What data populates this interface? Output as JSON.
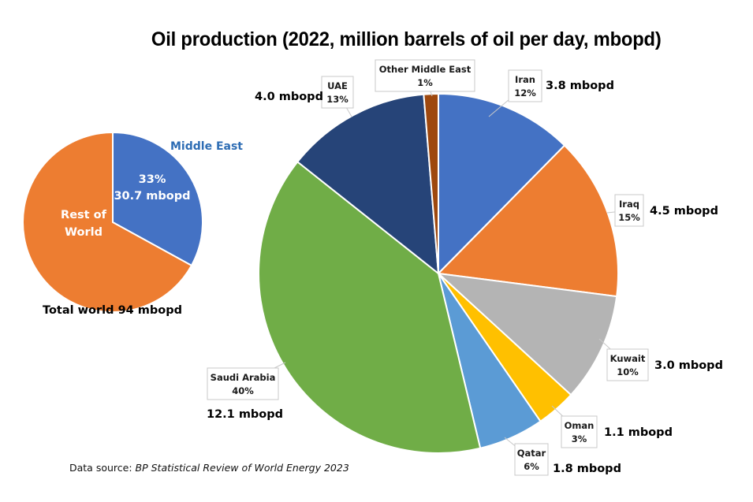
{
  "chart_data": [
    {
      "type": "pie",
      "title": "Oil production (2022, million barrels of oil per day, mbopd)",
      "name": "world-share",
      "slices": [
        {
          "label": "Middle East",
          "percent": 33,
          "value": 30.7,
          "value_label": "30.7 mbopd",
          "pct_label": "33%",
          "color": "#4472C4"
        },
        {
          "label": "Rest of World",
          "percent": 67,
          "value": 63.3,
          "color": "#ED7D31"
        }
      ],
      "slice_labels": {
        "middle_east_heading": "Middle East",
        "middle_east_pct": "33%",
        "middle_east_value": "30.7 mbopd",
        "rest_line1": "Rest of",
        "rest_line2": "World"
      },
      "caption": "Total world 94 mbopd",
      "start_angle_deg": 0,
      "direction": "clockwise"
    },
    {
      "type": "pie",
      "name": "middle-east-breakdown",
      "units": "mbopd",
      "slices": [
        {
          "label": "Iran",
          "percent": 12,
          "value": 3.8,
          "value_label": "3.8 mbopd",
          "color": "#4472C4"
        },
        {
          "label": "Iraq",
          "percent": 15,
          "value": 4.5,
          "value_label": "4.5 mbopd",
          "color": "#ED7D31"
        },
        {
          "label": "Kuwait",
          "percent": 10,
          "value": 3.0,
          "value_label": "3.0 mbopd",
          "color": "#B4B4B4"
        },
        {
          "label": "Oman",
          "percent": 3,
          "value": 1.1,
          "value_label": "1.1 mbopd",
          "color": "#FFC000"
        },
        {
          "label": "Qatar",
          "percent": 6,
          "value": 1.8,
          "value_label": "1.8 mbopd",
          "color": "#5B9BD5"
        },
        {
          "label": "Saudi Arabia",
          "percent": 40,
          "value": 12.1,
          "value_label": "12.1 mbopd",
          "color": "#70AD47"
        },
        {
          "label": "UAE",
          "percent": 13,
          "value": 4.0,
          "value_label": "4.0 mbopd",
          "color": "#264478"
        },
        {
          "label": "Other Middle East",
          "percent": 1,
          "value": 0.4,
          "value_label": "",
          "color": "#9E480E"
        }
      ],
      "start_angle_deg": 0,
      "direction": "clockwise"
    }
  ],
  "source": {
    "prefix": "Data source: ",
    "title": "BP Statistical Review of World Energy 2023"
  }
}
